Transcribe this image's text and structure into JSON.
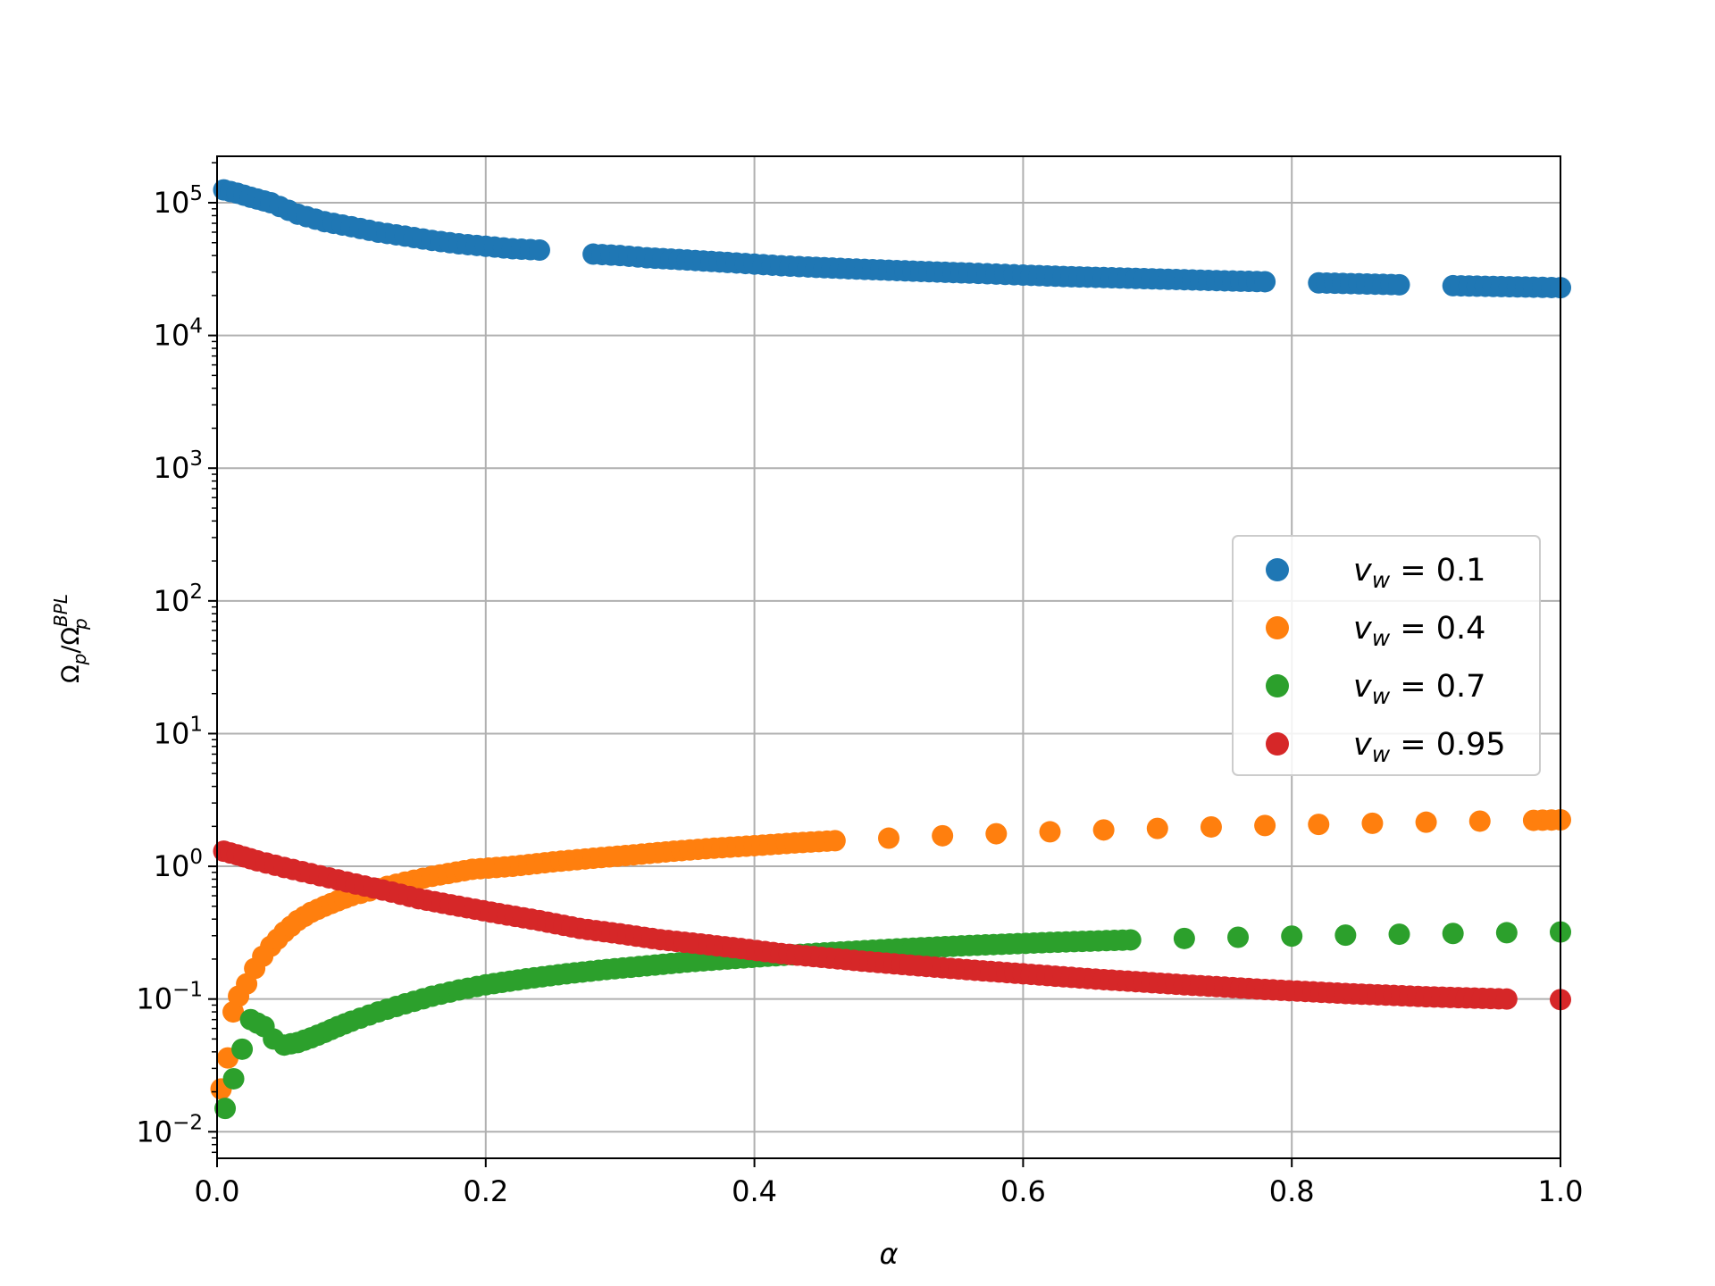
{
  "chart_data": {
    "type": "scatter",
    "title": "",
    "xlabel": "α",
    "ylabel_main": "Ω",
    "ylabel_sub1": "p",
    "ylabel_slash": "/Ω",
    "ylabel_sup": "BPL",
    "ylabel_sub2": "p",
    "xlim": [
      0.0,
      1.0
    ],
    "ylim_log10": [
      -2.2,
      5.35
    ],
    "yscale": "log",
    "grid": true,
    "legend_position": "center-right",
    "x_ticks": [
      {
        "value": 0.0,
        "label": "0.0"
      },
      {
        "value": 0.2,
        "label": "0.2"
      },
      {
        "value": 0.4,
        "label": "0.4"
      },
      {
        "value": 0.6,
        "label": "0.6"
      },
      {
        "value": 0.8,
        "label": "0.8"
      },
      {
        "value": 1.0,
        "label": "1.0"
      }
    ],
    "y_ticks": [
      {
        "exp": -2,
        "base": "10",
        "sup": "−2"
      },
      {
        "exp": -1,
        "base": "10",
        "sup": "−1"
      },
      {
        "exp": 0,
        "base": "10",
        "sup": "0"
      },
      {
        "exp": 1,
        "base": "10",
        "sup": "1"
      },
      {
        "exp": 2,
        "base": "10",
        "sup": "2"
      },
      {
        "exp": 3,
        "base": "10",
        "sup": "3"
      },
      {
        "exp": 4,
        "base": "10",
        "sup": "4"
      },
      {
        "exp": 5,
        "base": "10",
        "sup": "5"
      }
    ],
    "series": [
      {
        "name": "v_w = 0.1",
        "legend_var": "v",
        "legend_sub": "w",
        "legend_value": " = 0.1",
        "color": "#1f77b4",
        "points": [
          [
            0.005,
            125000
          ],
          [
            0.015,
            118000
          ],
          [
            0.025,
            110000
          ],
          [
            0.04,
            100000
          ],
          [
            0.06,
            82000
          ],
          [
            0.08,
            72000
          ],
          [
            0.1,
            66000
          ],
          [
            0.12,
            60000
          ],
          [
            0.14,
            56000
          ],
          [
            0.16,
            52000
          ],
          [
            0.18,
            49000
          ],
          [
            0.2,
            47000
          ],
          [
            0.22,
            45000
          ],
          [
            0.24,
            44000
          ],
          [
            0.28,
            41000
          ],
          [
            0.3,
            40000
          ],
          [
            0.32,
            38500
          ],
          [
            0.35,
            37000
          ],
          [
            0.38,
            35500
          ],
          [
            0.4,
            34500
          ],
          [
            0.42,
            33500
          ],
          [
            0.44,
            32800
          ],
          [
            0.47,
            31800
          ],
          [
            0.5,
            31000
          ],
          [
            0.53,
            30200
          ],
          [
            0.56,
            29500
          ],
          [
            0.58,
            29000
          ],
          [
            0.6,
            28500
          ],
          [
            0.63,
            27800
          ],
          [
            0.66,
            27300
          ],
          [
            0.69,
            26800
          ],
          [
            0.72,
            26300
          ],
          [
            0.75,
            25800
          ],
          [
            0.78,
            25400
          ],
          [
            0.82,
            24900
          ],
          [
            0.85,
            24500
          ],
          [
            0.88,
            24100
          ],
          [
            0.92,
            23700
          ],
          [
            0.95,
            23400
          ],
          [
            0.98,
            23100
          ],
          [
            1.0,
            22900
          ]
        ]
      },
      {
        "name": "v_w = 0.4",
        "legend_var": "v",
        "legend_sub": "w",
        "legend_value": " = 0.4",
        "color": "#ff7f0e",
        "points": [
          [
            0.003,
            0.021
          ],
          [
            0.008,
            0.036
          ],
          [
            0.012,
            0.08
          ],
          [
            0.016,
            0.105
          ],
          [
            0.022,
            0.13
          ],
          [
            0.028,
            0.17
          ],
          [
            0.034,
            0.21
          ],
          [
            0.04,
            0.25
          ],
          [
            0.05,
            0.32
          ],
          [
            0.06,
            0.39
          ],
          [
            0.07,
            0.45
          ],
          [
            0.08,
            0.5
          ],
          [
            0.09,
            0.55
          ],
          [
            0.1,
            0.6
          ],
          [
            0.12,
            0.68
          ],
          [
            0.14,
            0.76
          ],
          [
            0.16,
            0.84
          ],
          [
            0.19,
            0.95
          ],
          [
            0.22,
            1.0
          ],
          [
            0.25,
            1.08
          ],
          [
            0.28,
            1.15
          ],
          [
            0.31,
            1.22
          ],
          [
            0.34,
            1.3
          ],
          [
            0.37,
            1.37
          ],
          [
            0.4,
            1.43
          ],
          [
            0.43,
            1.5
          ],
          [
            0.46,
            1.56
          ],
          [
            0.5,
            1.63
          ],
          [
            0.54,
            1.7
          ],
          [
            0.58,
            1.76
          ],
          [
            0.62,
            1.82
          ],
          [
            0.66,
            1.88
          ],
          [
            0.7,
            1.93
          ],
          [
            0.74,
            1.98
          ],
          [
            0.78,
            2.03
          ],
          [
            0.82,
            2.07
          ],
          [
            0.86,
            2.11
          ],
          [
            0.9,
            2.15
          ],
          [
            0.94,
            2.19
          ],
          [
            0.98,
            2.22
          ],
          [
            1.0,
            2.24
          ]
        ]
      },
      {
        "name": "v_w = 0.7",
        "legend_var": "v",
        "legend_sub": "w",
        "legend_value": " = 0.7",
        "color": "#2ca02c",
        "points": [
          [
            0.006,
            0.015
          ],
          [
            0.025,
            0.07
          ],
          [
            0.035,
            0.062
          ],
          [
            0.042,
            0.05
          ],
          [
            0.05,
            0.045
          ],
          [
            0.06,
            0.047
          ],
          [
            0.07,
            0.051
          ],
          [
            0.08,
            0.056
          ],
          [
            0.09,
            0.062
          ],
          [
            0.1,
            0.068
          ],
          [
            0.12,
            0.08
          ],
          [
            0.14,
            0.092
          ],
          [
            0.16,
            0.105
          ],
          [
            0.18,
            0.117
          ],
          [
            0.2,
            0.128
          ],
          [
            0.23,
            0.142
          ],
          [
            0.26,
            0.155
          ],
          [
            0.29,
            0.167
          ],
          [
            0.32,
            0.178
          ],
          [
            0.35,
            0.19
          ],
          [
            0.38,
            0.2
          ],
          [
            0.41,
            0.21
          ],
          [
            0.44,
            0.219
          ],
          [
            0.47,
            0.228
          ],
          [
            0.5,
            0.237
          ],
          [
            0.53,
            0.245
          ],
          [
            0.56,
            0.253
          ],
          [
            0.59,
            0.26
          ],
          [
            0.62,
            0.267
          ],
          [
            0.65,
            0.273
          ],
          [
            0.68,
            0.279
          ],
          [
            0.72,
            0.286
          ],
          [
            0.76,
            0.292
          ],
          [
            0.8,
            0.298
          ],
          [
            0.84,
            0.303
          ],
          [
            0.88,
            0.308
          ],
          [
            0.92,
            0.312
          ],
          [
            0.96,
            0.316
          ],
          [
            1.0,
            0.32
          ]
        ]
      },
      {
        "name": "v_w = 0.95",
        "legend_var": "v",
        "legend_sub": "w",
        "legend_value": " = 0.95",
        "color": "#d62728",
        "points": [
          [
            0.005,
            1.3
          ],
          [
            0.015,
            1.22
          ],
          [
            0.03,
            1.1
          ],
          [
            0.05,
            0.98
          ],
          [
            0.07,
            0.88
          ],
          [
            0.09,
            0.79
          ],
          [
            0.11,
            0.71
          ],
          [
            0.13,
            0.64
          ],
          [
            0.15,
            0.57
          ],
          [
            0.18,
            0.5
          ],
          [
            0.21,
            0.44
          ],
          [
            0.24,
            0.39
          ],
          [
            0.27,
            0.34
          ],
          [
            0.3,
            0.31
          ],
          [
            0.33,
            0.28
          ],
          [
            0.36,
            0.26
          ],
          [
            0.39,
            0.24
          ],
          [
            0.42,
            0.22
          ],
          [
            0.45,
            0.206
          ],
          [
            0.48,
            0.193
          ],
          [
            0.51,
            0.182
          ],
          [
            0.54,
            0.172
          ],
          [
            0.57,
            0.163
          ],
          [
            0.6,
            0.155
          ],
          [
            0.63,
            0.147
          ],
          [
            0.66,
            0.14
          ],
          [
            0.69,
            0.134
          ],
          [
            0.72,
            0.128
          ],
          [
            0.75,
            0.123
          ],
          [
            0.78,
            0.118
          ],
          [
            0.81,
            0.114
          ],
          [
            0.84,
            0.11
          ],
          [
            0.87,
            0.107
          ],
          [
            0.9,
            0.104
          ],
          [
            0.93,
            0.102
          ],
          [
            0.96,
            0.1
          ],
          [
            1.0,
            0.099
          ]
        ]
      }
    ]
  }
}
